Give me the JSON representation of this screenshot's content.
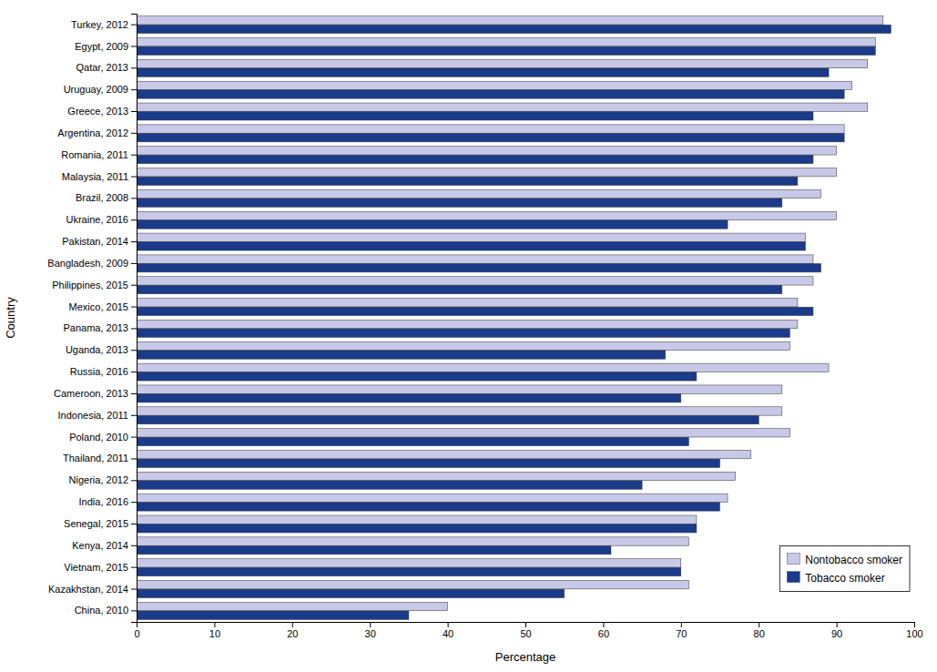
{
  "chart_data": {
    "type": "bar",
    "orientation": "horizontal",
    "categories": [
      "Turkey, 2012",
      "Egypt, 2009",
      "Qatar, 2013",
      "Uruguay, 2009",
      "Greece, 2013",
      "Argentina, 2012",
      "Romania, 2011",
      "Malaysia, 2011",
      "Brazil, 2008",
      "Ukraine, 2016",
      "Pakistan, 2014",
      "Bangladesh, 2009",
      "Philippines, 2015",
      "Mexico, 2015",
      "Panama, 2013",
      "Uganda, 2013",
      "Russia, 2016",
      "Cameroon, 2013",
      "Indonesia, 2011",
      "Poland, 2010",
      "Thailand, 2011",
      "Nigeria, 2012",
      "India, 2016",
      "Senegal, 2015",
      "Kenya, 2014",
      "Vietnam, 2015",
      "Kazakhstan, 2014",
      "China, 2010"
    ],
    "series": [
      {
        "name": "Nontobacco smoker",
        "color": "#c8c8e8",
        "values": [
          96,
          95,
          94,
          92,
          94,
          91,
          90,
          90,
          88,
          90,
          86,
          87,
          87,
          85,
          85,
          84,
          89,
          83,
          83,
          84,
          79,
          77,
          76,
          72,
          71,
          70,
          71,
          40
        ]
      },
      {
        "name": "Tobacco smoker",
        "color": "#1a3a8a",
        "values": [
          97,
          95,
          89,
          91,
          87,
          91,
          87,
          85,
          83,
          76,
          86,
          88,
          83,
          87,
          84,
          68,
          72,
          70,
          80,
          71,
          75,
          65,
          75,
          72,
          61,
          70,
          55,
          35
        ]
      }
    ],
    "x_label": "Percentage",
    "y_label": "Country",
    "xlim": [
      0,
      100
    ],
    "xticks": [
      0,
      10,
      20,
      30,
      40,
      50,
      60,
      70,
      80,
      90,
      100
    ],
    "grid": false,
    "legend": "lower right"
  }
}
